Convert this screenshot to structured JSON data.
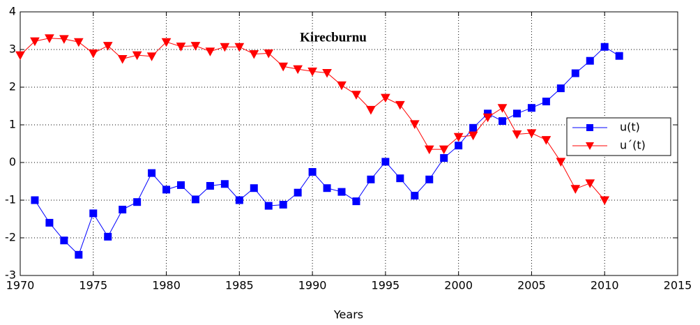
{
  "chart_data": {
    "type": "line",
    "title": "Kirecburnu",
    "x_label": "Years",
    "x": [
      1970,
      1971,
      1972,
      1973,
      1974,
      1975,
      1976,
      1977,
      1978,
      1979,
      1980,
      1981,
      1982,
      1983,
      1984,
      1985,
      1986,
      1987,
      1988,
      1989,
      1990,
      1991,
      1992,
      1993,
      1994,
      1995,
      1996,
      1997,
      1998,
      1999,
      2000,
      2001,
      2002,
      2003,
      2004,
      2005,
      2006,
      2007,
      2008,
      2009,
      2010,
      2011
    ],
    "series": [
      {
        "name": "u(t)",
        "color": "#0000ff",
        "marker": "square",
        "values": [
          null,
          -1.0,
          -1.6,
          -2.07,
          -2.45,
          -1.35,
          -1.97,
          -1.25,
          -1.05,
          -0.28,
          -0.72,
          -0.6,
          -0.98,
          -0.62,
          -0.57,
          -1.0,
          -0.68,
          -1.15,
          -1.12,
          -0.8,
          -0.25,
          -0.68,
          -0.78,
          -1.03,
          -0.45,
          0.02,
          -0.42,
          -0.88,
          -0.45,
          0.12,
          0.45,
          0.92,
          1.3,
          1.1,
          1.3,
          1.45,
          1.62,
          1.97,
          2.37,
          2.7,
          3.07,
          2.83
        ]
      },
      {
        "name": "u´(t)",
        "color": "#ff0000",
        "marker": "triangle-down",
        "values": [
          2.85,
          3.22,
          3.3,
          3.28,
          3.2,
          2.9,
          3.1,
          2.75,
          2.85,
          2.82,
          3.2,
          3.08,
          3.1,
          2.95,
          3.07,
          3.07,
          2.88,
          2.9,
          2.55,
          2.48,
          2.42,
          2.38,
          2.05,
          1.8,
          1.4,
          1.72,
          1.53,
          1.02,
          0.35,
          0.35,
          0.68,
          0.72,
          1.2,
          1.45,
          0.75,
          0.78,
          0.6,
          0.02,
          -0.7,
          -0.55,
          -1.0,
          null
        ]
      }
    ],
    "xlim": [
      1970,
      2015
    ],
    "xticks": [
      1970,
      1975,
      1980,
      1985,
      1990,
      1995,
      2000,
      2005,
      2010,
      2015
    ],
    "ylim": [
      -3,
      4
    ],
    "yticks": [
      -3,
      -2,
      -1,
      0,
      1,
      2,
      3,
      4
    ],
    "grid": true,
    "legend": "right"
  }
}
